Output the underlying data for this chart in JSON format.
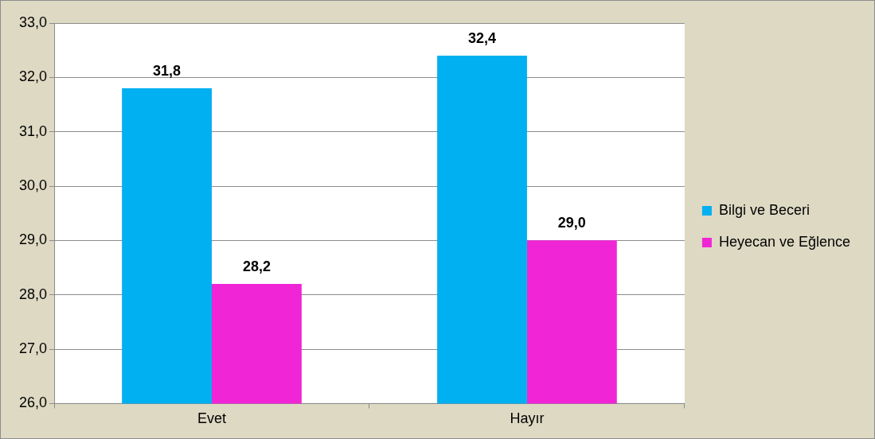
{
  "chart_data": {
    "type": "bar",
    "categories": [
      "Evet",
      "Hayır"
    ],
    "series": [
      {
        "name": "Bilgi ve Beceri",
        "color": "#00b0f0",
        "values": [
          31.8,
          32.4
        ],
        "value_labels": [
          "31,8",
          "32,4"
        ]
      },
      {
        "name": "Heyecan ve Eğlence",
        "color": "#f025d6",
        "values": [
          28.2,
          29.0
        ],
        "value_labels": [
          "28,2",
          "29,0"
        ]
      }
    ],
    "ylim": [
      26,
      33
    ],
    "yticks": [
      {
        "value": 26,
        "label": "26,0"
      },
      {
        "value": 27,
        "label": "27,0"
      },
      {
        "value": 28,
        "label": "28,0"
      },
      {
        "value": 29,
        "label": "29,0"
      },
      {
        "value": 30,
        "label": "30,0"
      },
      {
        "value": 31,
        "label": "31,0"
      },
      {
        "value": 32,
        "label": "32,0"
      },
      {
        "value": 33,
        "label": "33,0"
      }
    ],
    "grid": "y",
    "legend": "right"
  }
}
